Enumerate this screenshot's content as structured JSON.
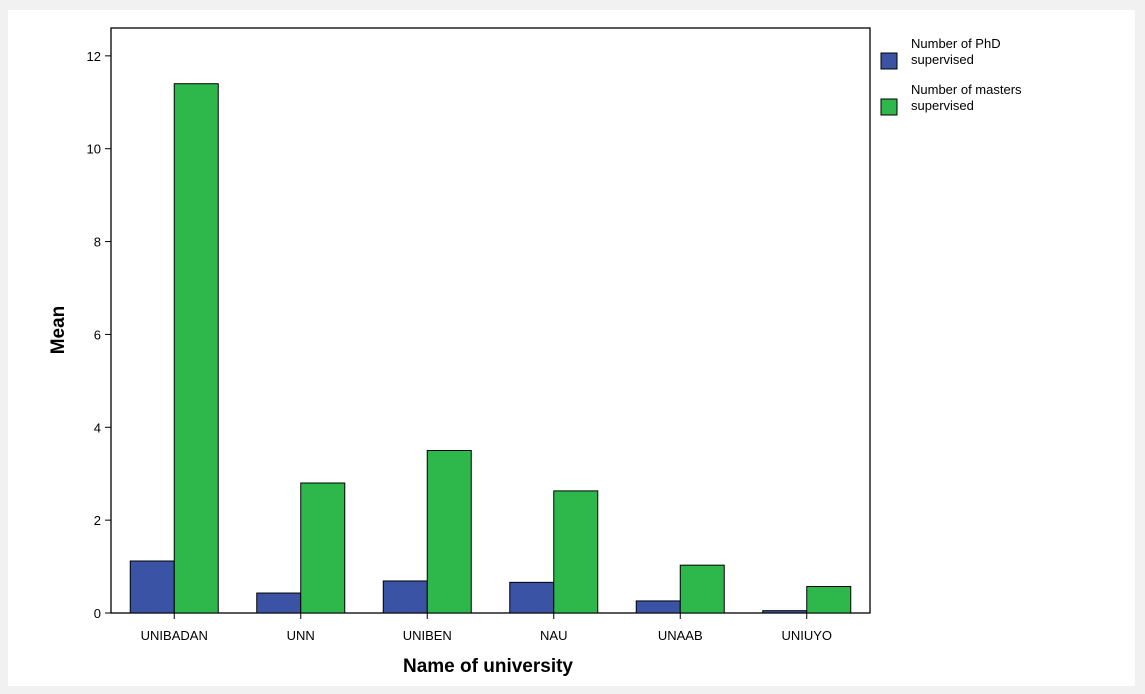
{
  "chart_data": {
    "type": "bar",
    "title": "",
    "xlabel": "Name of university",
    "ylabel": "Mean",
    "categories": [
      "UNIBADAN",
      "UNN",
      "UNIBEN",
      "NAU",
      "UNAAB",
      "UNIUYO"
    ],
    "series": [
      {
        "name": "Number of PhD supervised",
        "color": "#3b53a5",
        "values": [
          1.12,
          0.43,
          0.69,
          0.66,
          0.26,
          0.05
        ]
      },
      {
        "name": "Number of masters supervised",
        "color": "#2eb84b",
        "values": [
          11.4,
          2.8,
          3.5,
          2.63,
          1.03,
          0.57
        ]
      }
    ],
    "yticks": [
      "0",
      "2",
      "4",
      "6",
      "8",
      "10",
      "12"
    ],
    "ylim": [
      0,
      12.6
    ],
    "grid": false,
    "legend_position": "right"
  }
}
